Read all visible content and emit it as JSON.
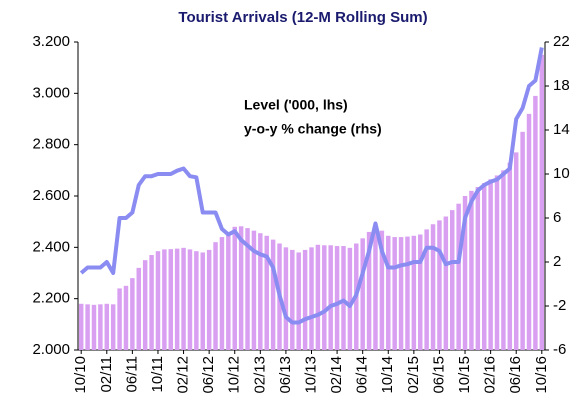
{
  "chart_data": {
    "type": "bar",
    "title": "Tourist Arrivals (12-M Rolling Sum)",
    "categories": [
      "10/10",
      null,
      null,
      null,
      "02/11",
      null,
      null,
      null,
      "06/11",
      null,
      null,
      null,
      "10/11",
      null,
      null,
      null,
      "02/12",
      null,
      null,
      null,
      "06/12",
      null,
      null,
      null,
      "10/12",
      null,
      null,
      null,
      "02/13",
      null,
      null,
      null,
      "06/13",
      null,
      null,
      null,
      "10/13",
      null,
      null,
      null,
      "02/14",
      null,
      null,
      null,
      "06/14",
      null,
      null,
      null,
      "10/14",
      null,
      null,
      null,
      "02/15",
      null,
      null,
      null,
      "06/15",
      null,
      null,
      null,
      "10/15",
      null,
      null,
      null,
      "02/16",
      null,
      null,
      null,
      "06/16",
      null,
      null,
      null,
      "10/16"
    ],
    "series": [
      {
        "name": "Level ('000, lhs)",
        "type": "bar",
        "color": "#d9a0f2",
        "values": [
          2180,
          2178,
          2176,
          2178,
          2180,
          2178,
          2240,
          2250,
          2280,
          2320,
          2350,
          2370,
          2385,
          2392,
          2393,
          2395,
          2398,
          2392,
          2385,
          2380,
          2390,
          2420,
          2440,
          2460,
          2480,
          2482,
          2475,
          2465,
          2455,
          2445,
          2430,
          2415,
          2400,
          2390,
          2380,
          2390,
          2400,
          2410,
          2408,
          2408,
          2405,
          2405,
          2398,
          2415,
          2435,
          2460,
          2480,
          2465,
          2445,
          2440,
          2440,
          2442,
          2445,
          2450,
          2470,
          2490,
          2505,
          2520,
          2545,
          2570,
          2600,
          2620,
          2635,
          2650,
          2665,
          2680,
          2700,
          2730,
          2770,
          2850,
          2920,
          2990,
          3150
        ]
      },
      {
        "name": "y-o-y % change (rhs)",
        "type": "line",
        "axis": "y2",
        "color": "#8a8cf2",
        "values": [
          1,
          1.5,
          1.5,
          1.5,
          2,
          1,
          6,
          6,
          6.5,
          9,
          9.8,
          9.8,
          10,
          10,
          10,
          10.3,
          10.5,
          9.8,
          9.7,
          6.5,
          6.5,
          6.5,
          5,
          4.5,
          4.8,
          4,
          3.5,
          3,
          2.7,
          2.5,
          1.5,
          -1,
          -3,
          -3.5,
          -3.5,
          -3.2,
          -3,
          -2.8,
          -2.5,
          -2,
          -1.8,
          -1.5,
          -2,
          -1,
          1,
          3,
          5.5,
          3,
          1.5,
          1.5,
          1.7,
          1.8,
          2,
          2,
          3.3,
          3.3,
          3,
          1.8,
          2,
          2,
          6,
          7.5,
          8.5,
          9,
          9.3,
          9.5,
          10,
          10.5,
          15,
          16,
          18,
          18.5,
          21.5
        ]
      }
    ],
    "ylim": [
      2000,
      3200
    ],
    "yticks": [
      {
        "value": 2000,
        "label": "2.000"
      },
      {
        "value": 2200,
        "label": "2.200"
      },
      {
        "value": 2400,
        "label": "2.400"
      },
      {
        "value": 2600,
        "label": "2.600"
      },
      {
        "value": 2800,
        "label": "2.800"
      },
      {
        "value": 3000,
        "label": "3.000"
      },
      {
        "value": 3200,
        "label": "3.200"
      }
    ],
    "y2lim": [
      -6,
      22
    ],
    "y2ticks": [
      -6,
      -2,
      2,
      6,
      10,
      14,
      18,
      22
    ],
    "grid": false
  }
}
